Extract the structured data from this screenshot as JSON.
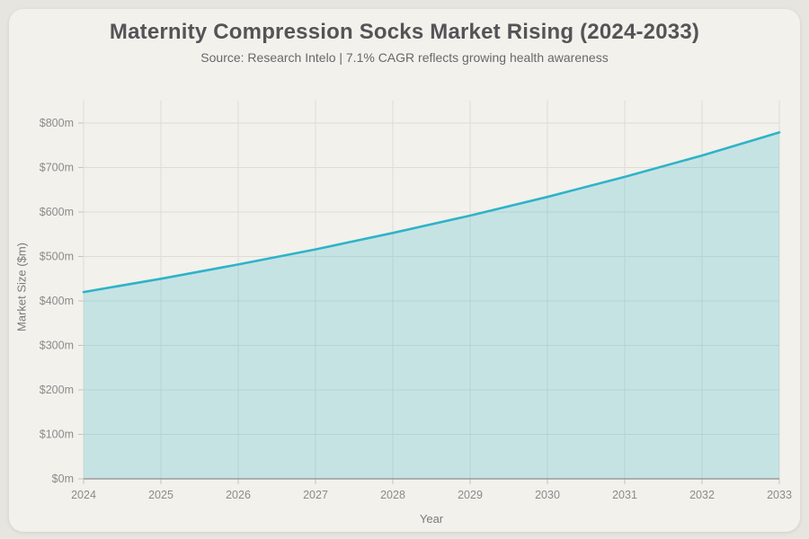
{
  "page": {
    "background_color": "#e7e5e0",
    "card_background_color": "#f2f1ec"
  },
  "chart_data": {
    "type": "area",
    "title": "Maternity Compression Socks Market Rising (2024-2033)",
    "subtitle": "Source: Research Intelo | 7.1% CAGR reflects growing health awareness",
    "xlabel": "Year",
    "ylabel": "Market Size ($m)",
    "categories": [
      "2024",
      "2025",
      "2026",
      "2027",
      "2028",
      "2029",
      "2030",
      "2031",
      "2032",
      "2033"
    ],
    "values": [
      420,
      450,
      482,
      516,
      553,
      592,
      634,
      679,
      727,
      779
    ],
    "ylim": [
      0,
      800
    ],
    "y_tick_step": 100,
    "y_tick_labels": [
      "$0m",
      "$100m",
      "$200m",
      "$300m",
      "$400m",
      "$500m",
      "$600m",
      "$700m",
      "$800m"
    ],
    "grid": true,
    "legend_position": "none",
    "line_color": "#2fb3c8",
    "fill_color": "rgba(60,185,205,0.24)",
    "grid_color": "#dddcd7",
    "axis_line_color": "#9b9b98",
    "tick_mark_color": "#c3c3bf"
  }
}
